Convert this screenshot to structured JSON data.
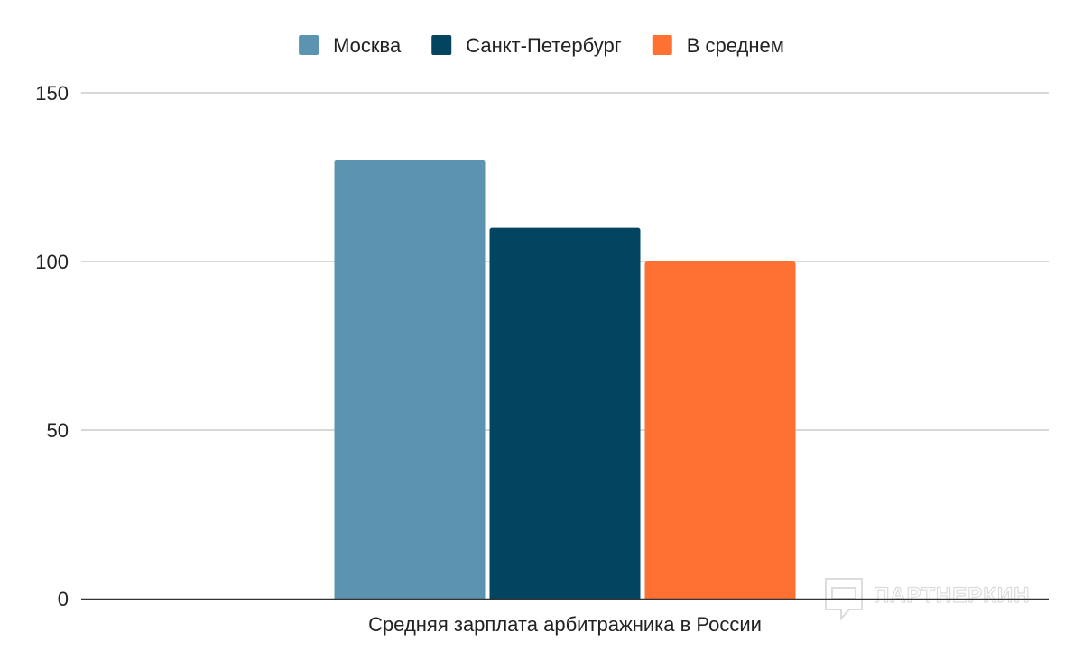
{
  "chart_data": {
    "type": "bar",
    "categories": [
      "Средняя зарплата арбитражника в России"
    ],
    "series": [
      {
        "name": "Москва",
        "values": [
          130
        ],
        "color": "#5b93b0"
      },
      {
        "name": "Санкт-Петербург",
        "values": [
          110
        ],
        "color": "#034561"
      },
      {
        "name": "В среднем",
        "values": [
          100
        ],
        "color": "#ff7033"
      }
    ],
    "ylim": [
      0,
      150
    ],
    "yticks": [
      0,
      50,
      100,
      150
    ],
    "grid": true,
    "legend": "top-center"
  },
  "watermark": {
    "text": "ПАРТНЕРКИН",
    "icon": "chat-bubble-icon"
  }
}
